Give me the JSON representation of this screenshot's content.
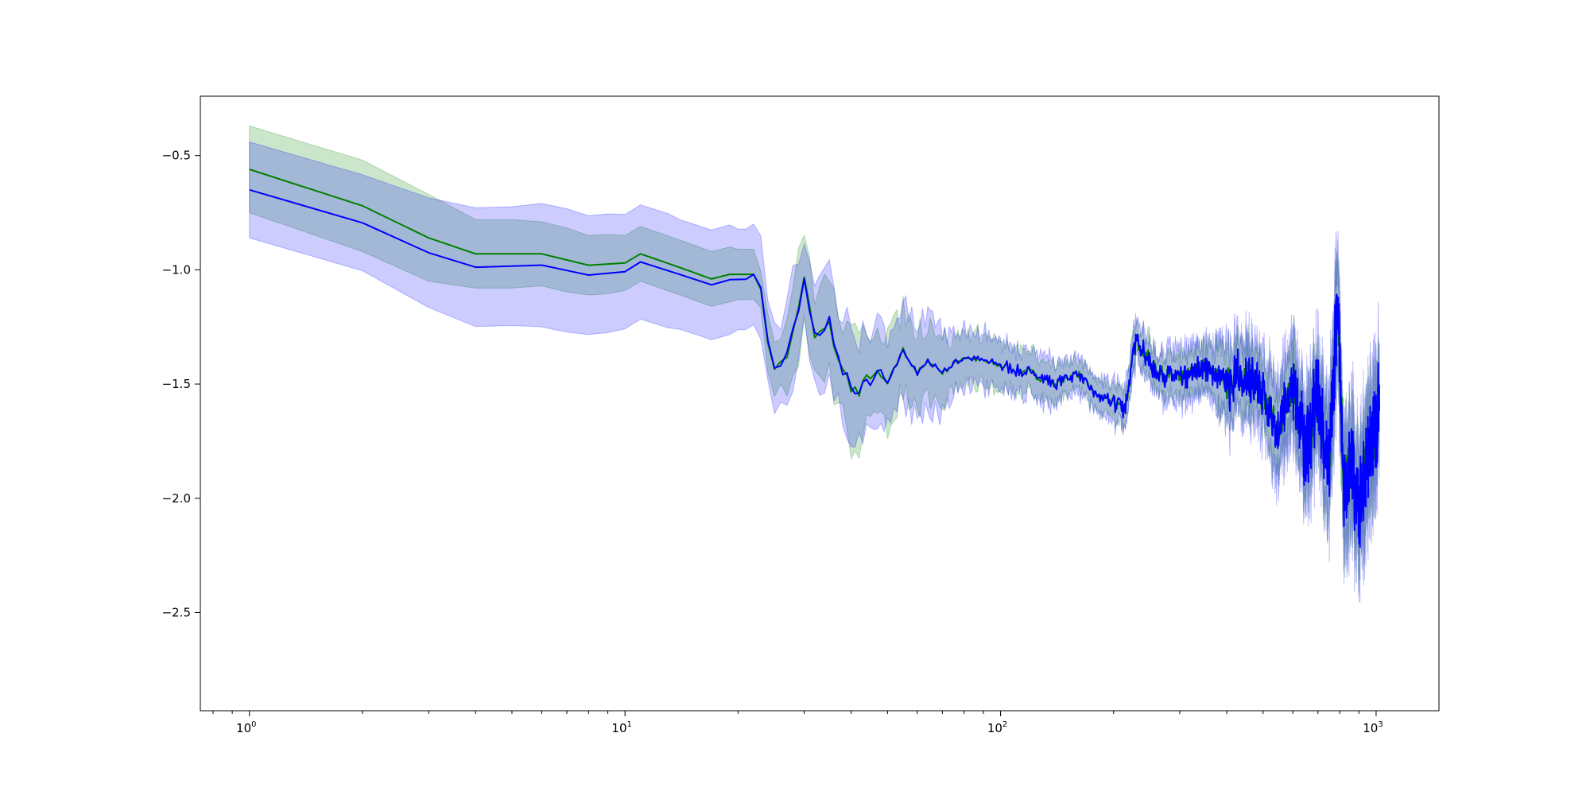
{
  "chart_data": {
    "type": "line",
    "title": "",
    "xlabel": "",
    "ylabel": "",
    "x_scale": "log",
    "xlim": [
      0.74,
      1470
    ],
    "ylim": [
      -2.93,
      -0.24
    ],
    "grid": false,
    "legend": "none",
    "x_ticks": [
      {
        "value": 1,
        "base": "10",
        "exp": "0"
      },
      {
        "value": 10,
        "base": "10",
        "exp": "1"
      },
      {
        "value": 100,
        "base": "10",
        "exp": "2"
      },
      {
        "value": 1000,
        "base": "10",
        "exp": "3"
      }
    ],
    "y_ticks": [
      {
        "value": -0.5,
        "label": "−0.5"
      },
      {
        "value": -1.0,
        "label": "−1.0"
      },
      {
        "value": -1.5,
        "label": "−1.5"
      },
      {
        "value": -2.0,
        "label": "−2.0"
      },
      {
        "value": -2.5,
        "label": "−2.5"
      }
    ],
    "series": [
      {
        "color": "#008000",
        "band_color": "#008000",
        "band_opacity": 0.2,
        "band_width": [
          0.19,
          0.19,
          0.2,
          0.19,
          0.15,
          0.14,
          0.13,
          0.12,
          0.12,
          0.11,
          0.18,
          0.2,
          0.16,
          0.1,
          0.08,
          0.06,
          0.07,
          0.08,
          0.12,
          0.15,
          0.2,
          0.15
        ],
        "points": [
          [
            1,
            -0.56
          ],
          [
            2,
            -0.72
          ],
          [
            3,
            -0.86
          ],
          [
            4,
            -0.93
          ],
          [
            6,
            -0.93
          ],
          [
            8,
            -0.98
          ],
          [
            10,
            -0.97
          ],
          [
            11,
            -0.93
          ],
          [
            14,
            -0.99
          ],
          [
            17,
            -1.04
          ],
          [
            19,
            -1.02
          ],
          [
            22,
            -1.02
          ],
          [
            23,
            -1.05
          ],
          [
            24,
            -1.35
          ],
          [
            25,
            -1.42
          ],
          [
            26,
            -1.38
          ],
          [
            27,
            -1.4
          ],
          [
            29,
            -1.15
          ],
          [
            30,
            -1.05
          ],
          [
            32,
            -1.3
          ],
          [
            35,
            -1.25
          ],
          [
            38,
            -1.45
          ],
          [
            42,
            -1.55
          ],
          [
            45,
            -1.45
          ],
          [
            50,
            -1.5
          ],
          [
            55,
            -1.35
          ],
          [
            60,
            -1.45
          ],
          [
            65,
            -1.4
          ],
          [
            70,
            -1.45
          ],
          [
            80,
            -1.38
          ],
          [
            90,
            -1.4
          ],
          [
            100,
            -1.42
          ],
          [
            120,
            -1.45
          ],
          [
            140,
            -1.5
          ],
          [
            160,
            -1.45
          ],
          [
            180,
            -1.55
          ],
          [
            200,
            -1.58
          ],
          [
            215,
            -1.6
          ],
          [
            230,
            -1.3
          ],
          [
            260,
            -1.45
          ],
          [
            300,
            -1.48
          ],
          [
            350,
            -1.42
          ],
          [
            400,
            -1.5
          ],
          [
            450,
            -1.45
          ],
          [
            500,
            -1.55
          ],
          [
            550,
            -1.7
          ],
          [
            600,
            -1.5
          ],
          [
            650,
            -1.8
          ],
          [
            700,
            -1.55
          ],
          [
            750,
            -1.9
          ],
          [
            790,
            -1.1
          ],
          [
            820,
            -1.95
          ],
          [
            860,
            -1.85
          ],
          [
            900,
            -2.05
          ],
          [
            950,
            -1.8
          ],
          [
            1000,
            -1.7
          ],
          [
            1020,
            -1.55
          ]
        ]
      },
      {
        "color": "#0000ff",
        "band_color": "#0000ff",
        "band_opacity": 0.2,
        "band_width": [
          0.21,
          0.2,
          0.21,
          0.24,
          0.26,
          0.27,
          0.26,
          0.25,
          0.24,
          0.22,
          0.2,
          0.2,
          0.18,
          0.12,
          0.09,
          0.07,
          0.08,
          0.1,
          0.14,
          0.18,
          0.22,
          0.2
        ]
      }
    ]
  }
}
